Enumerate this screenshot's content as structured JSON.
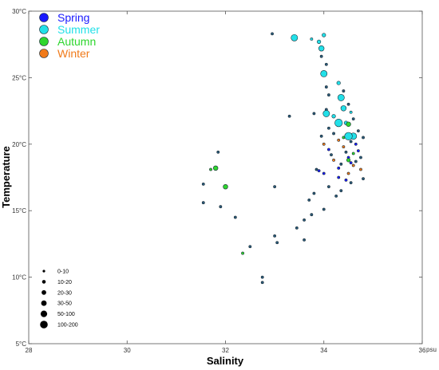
{
  "chart_data": {
    "type": "scatter",
    "xlabel": "Salinity",
    "ylabel": "Temperature",
    "x_unit": "psu",
    "xlim": [
      28,
      36
    ],
    "ylim": [
      5,
      30
    ],
    "x_ticks": [
      28,
      30,
      32,
      34,
      36
    ],
    "y_ticks": [
      5,
      10,
      15,
      20,
      25,
      30
    ],
    "x_tick_labels": [
      "28",
      "30",
      "32",
      "34",
      "36"
    ],
    "y_tick_labels": [
      "5°C",
      "10°C",
      "15°C",
      "20°C",
      "25°C",
      "30°C"
    ],
    "grid": false,
    "legend_position": "top-left",
    "series": [
      {
        "name": "Spring",
        "color": "#1a1aff",
        "points": [
          {
            "x": 34.1,
            "y": 19.6,
            "n": 5
          },
          {
            "x": 34.5,
            "y": 19.0,
            "n": 5
          },
          {
            "x": 34.55,
            "y": 18.6,
            "n": 5
          },
          {
            "x": 34.3,
            "y": 18.2,
            "n": 5
          },
          {
            "x": 34.45,
            "y": 17.3,
            "n": 5
          },
          {
            "x": 33.9,
            "y": 18.0,
            "n": 5
          },
          {
            "x": 34.7,
            "y": 19.5,
            "n": 5
          },
          {
            "x": 34.0,
            "y": 17.8,
            "n": 5
          },
          {
            "x": 34.3,
            "y": 17.5,
            "n": 5
          },
          {
            "x": 34.65,
            "y": 20.0,
            "n": 5
          }
        ]
      },
      {
        "name": "Summer",
        "color": "#22e0e8",
        "points": [
          {
            "x": 33.4,
            "y": 28.0,
            "n": 60
          },
          {
            "x": 34.0,
            "y": 25.3,
            "n": 60
          },
          {
            "x": 34.35,
            "y": 23.5,
            "n": 60
          },
          {
            "x": 34.05,
            "y": 22.3,
            "n": 60
          },
          {
            "x": 34.3,
            "y": 21.6,
            "n": 120
          },
          {
            "x": 34.5,
            "y": 20.6,
            "n": 120
          },
          {
            "x": 34.6,
            "y": 20.6,
            "n": 60
          },
          {
            "x": 34.4,
            "y": 22.7,
            "n": 40
          },
          {
            "x": 33.95,
            "y": 27.2,
            "n": 40
          },
          {
            "x": 34.3,
            "y": 24.6,
            "n": 20
          },
          {
            "x": 33.9,
            "y": 27.7,
            "n": 15
          },
          {
            "x": 34.0,
            "y": 28.2,
            "n": 15
          },
          {
            "x": 34.2,
            "y": 22.1,
            "n": 15
          },
          {
            "x": 34.45,
            "y": 21.6,
            "n": 15
          },
          {
            "x": 33.75,
            "y": 27.9,
            "n": 10
          },
          {
            "x": 34.55,
            "y": 22.4,
            "n": 10
          }
        ]
      },
      {
        "name": "Autumn",
        "color": "#2ed62e",
        "points": [
          {
            "x": 31.8,
            "y": 18.2,
            "n": 30
          },
          {
            "x": 32.0,
            "y": 16.8,
            "n": 30
          },
          {
            "x": 34.5,
            "y": 21.5,
            "n": 30
          },
          {
            "x": 34.5,
            "y": 18.8,
            "n": 15
          },
          {
            "x": 31.7,
            "y": 18.1,
            "n": 10
          },
          {
            "x": 32.35,
            "y": 11.8,
            "n": 5
          },
          {
            "x": 34.4,
            "y": 20.5,
            "n": 10
          },
          {
            "x": 34.6,
            "y": 19.3,
            "n": 10
          }
        ]
      },
      {
        "name": "Winter",
        "color": "#f07a1a",
        "points": [
          {
            "x": 34.0,
            "y": 20.0,
            "n": 5
          },
          {
            "x": 34.4,
            "y": 19.8,
            "n": 10
          },
          {
            "x": 34.6,
            "y": 18.4,
            "n": 10
          },
          {
            "x": 34.2,
            "y": 18.8,
            "n": 5
          },
          {
            "x": 34.5,
            "y": 17.8,
            "n": 5
          },
          {
            "x": 34.75,
            "y": 18.1,
            "n": 5
          },
          {
            "x": 34.3,
            "y": 20.3,
            "n": 5
          }
        ]
      },
      {
        "name": "",
        "color": "#2a5a78",
        "points": [
          {
            "x": 32.95,
            "y": 28.3,
            "n": 5
          },
          {
            "x": 33.3,
            "y": 22.1,
            "n": 5
          },
          {
            "x": 33.0,
            "y": 16.8,
            "n": 5
          },
          {
            "x": 32.2,
            "y": 14.5,
            "n": 5
          },
          {
            "x": 31.85,
            "y": 19.4,
            "n": 5
          },
          {
            "x": 31.55,
            "y": 17.0,
            "n": 5
          },
          {
            "x": 31.55,
            "y": 15.6,
            "n": 5
          },
          {
            "x": 31.9,
            "y": 15.3,
            "n": 5
          },
          {
            "x": 33.0,
            "y": 13.1,
            "n": 5
          },
          {
            "x": 33.05,
            "y": 12.6,
            "n": 5
          },
          {
            "x": 32.5,
            "y": 12.3,
            "n": 5
          },
          {
            "x": 32.75,
            "y": 10.0,
            "n": 5
          },
          {
            "x": 32.75,
            "y": 9.6,
            "n": 5
          },
          {
            "x": 33.6,
            "y": 14.3,
            "n": 5
          },
          {
            "x": 33.6,
            "y": 12.8,
            "n": 5
          },
          {
            "x": 33.45,
            "y": 13.7,
            "n": 5
          },
          {
            "x": 33.7,
            "y": 15.8,
            "n": 5
          },
          {
            "x": 33.8,
            "y": 16.3,
            "n": 5
          },
          {
            "x": 33.75,
            "y": 14.7,
            "n": 5
          },
          {
            "x": 34.0,
            "y": 15.1,
            "n": 5
          },
          {
            "x": 33.85,
            "y": 18.1,
            "n": 5
          },
          {
            "x": 34.1,
            "y": 16.8,
            "n": 5
          },
          {
            "x": 34.25,
            "y": 16.1,
            "n": 5
          },
          {
            "x": 34.05,
            "y": 22.6,
            "n": 5
          },
          {
            "x": 34.05,
            "y": 24.3,
            "n": 5
          },
          {
            "x": 34.1,
            "y": 23.7,
            "n": 5
          },
          {
            "x": 34.5,
            "y": 23.0,
            "n": 5
          },
          {
            "x": 34.6,
            "y": 21.9,
            "n": 5
          },
          {
            "x": 34.7,
            "y": 21.0,
            "n": 5
          },
          {
            "x": 34.8,
            "y": 20.5,
            "n": 5
          },
          {
            "x": 34.75,
            "y": 19.0,
            "n": 5
          },
          {
            "x": 34.8,
            "y": 17.4,
            "n": 5
          },
          {
            "x": 34.55,
            "y": 17.1,
            "n": 5
          },
          {
            "x": 34.35,
            "y": 16.5,
            "n": 5
          },
          {
            "x": 34.1,
            "y": 21.2,
            "n": 5
          },
          {
            "x": 34.2,
            "y": 20.8,
            "n": 5
          },
          {
            "x": 33.95,
            "y": 20.6,
            "n": 5
          },
          {
            "x": 34.4,
            "y": 24.0,
            "n": 5
          },
          {
            "x": 33.95,
            "y": 26.6,
            "n": 5
          },
          {
            "x": 34.05,
            "y": 26.0,
            "n": 5
          },
          {
            "x": 33.8,
            "y": 22.3,
            "n": 5
          },
          {
            "x": 34.65,
            "y": 18.7,
            "n": 5
          },
          {
            "x": 34.45,
            "y": 19.4,
            "n": 5
          },
          {
            "x": 34.55,
            "y": 20.2,
            "n": 5
          },
          {
            "x": 34.15,
            "y": 19.2,
            "n": 5
          },
          {
            "x": 34.35,
            "y": 18.5,
            "n": 5
          }
        ]
      }
    ],
    "size_legend": [
      {
        "label": "0-10",
        "n": 5
      },
      {
        "label": "10-20",
        "n": 15
      },
      {
        "label": "20-30",
        "n": 25
      },
      {
        "label": "30-50",
        "n": 40
      },
      {
        "label": "50-100",
        "n": 75
      },
      {
        "label": "100-200",
        "n": 150
      }
    ]
  }
}
